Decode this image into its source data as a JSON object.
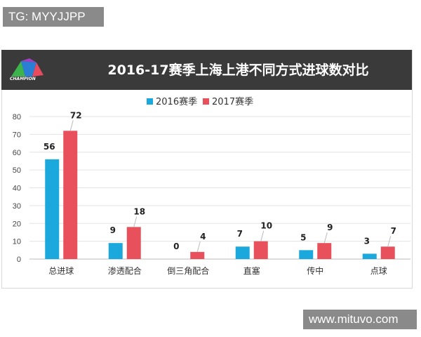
{
  "watermarks": {
    "top_left": "TG: MYYJJPP",
    "bottom_right": "www.mituvo.com"
  },
  "logo": {
    "text": "CHAMPION"
  },
  "chart_data": {
    "type": "bar",
    "title": "2016-17赛季上海上港不同方式进球数对比",
    "categories": [
      "总进球",
      "渗透配合",
      "倒三角配合",
      "直塞",
      "传中",
      "点球"
    ],
    "series": [
      {
        "name": "2016赛季",
        "color": "#1ba8dc",
        "values": [
          56,
          9,
          0,
          7,
          5,
          3
        ]
      },
      {
        "name": "2017赛季",
        "color": "#e8505b",
        "values": [
          72,
          18,
          4,
          10,
          9,
          7
        ]
      }
    ],
    "ylim": [
      0,
      80
    ],
    "yticks": [
      0,
      10,
      20,
      30,
      40,
      50,
      60,
      70,
      80
    ],
    "grid": true,
    "legend": "top-center",
    "data_labels": true
  }
}
